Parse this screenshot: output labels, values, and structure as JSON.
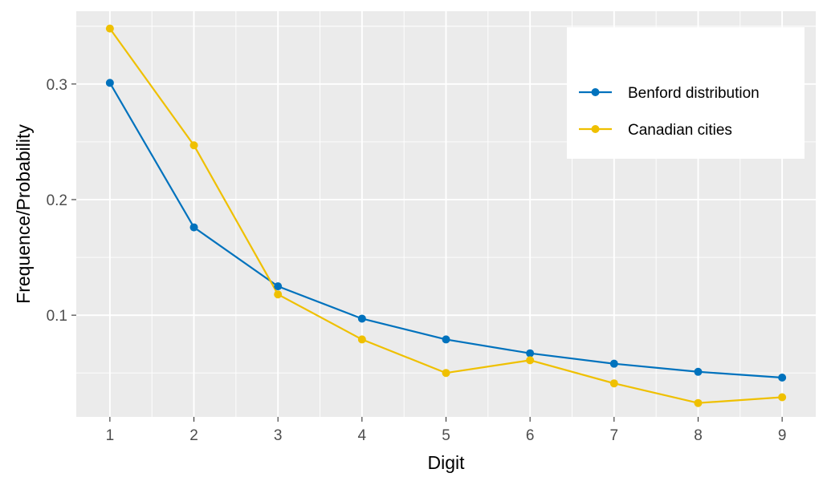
{
  "chart_data": {
    "type": "line",
    "title": "",
    "xlabel": "Digit",
    "ylabel": "Frequence/Probability",
    "x": [
      1,
      2,
      3,
      4,
      5,
      6,
      7,
      8,
      9
    ],
    "xlim": [
      0.6,
      9.4
    ],
    "ylim": [
      0.012,
      0.363
    ],
    "x_ticks": [
      1,
      2,
      3,
      4,
      5,
      6,
      7,
      8,
      9
    ],
    "x_tick_labels": [
      "1",
      "2",
      "3",
      "4",
      "5",
      "6",
      "7",
      "8",
      "9"
    ],
    "y_ticks": [
      0.1,
      0.2,
      0.3
    ],
    "y_tick_labels": [
      "0.1",
      "0.2",
      "0.3"
    ],
    "y_minor_ticks": [
      0.05,
      0.15,
      0.25,
      0.35
    ],
    "grid": true,
    "panel_background": "#ebebeb",
    "legend_position": "top-right",
    "series": [
      {
        "name": "Benford distribution",
        "color": "#0072bd",
        "values": [
          0.301,
          0.176,
          0.125,
          0.097,
          0.079,
          0.067,
          0.058,
          0.051,
          0.046
        ]
      },
      {
        "name": "Canadian cities",
        "color": "#efc000",
        "values": [
          0.348,
          0.247,
          0.118,
          0.079,
          0.05,
          0.061,
          0.041,
          0.024,
          0.029
        ]
      }
    ]
  }
}
